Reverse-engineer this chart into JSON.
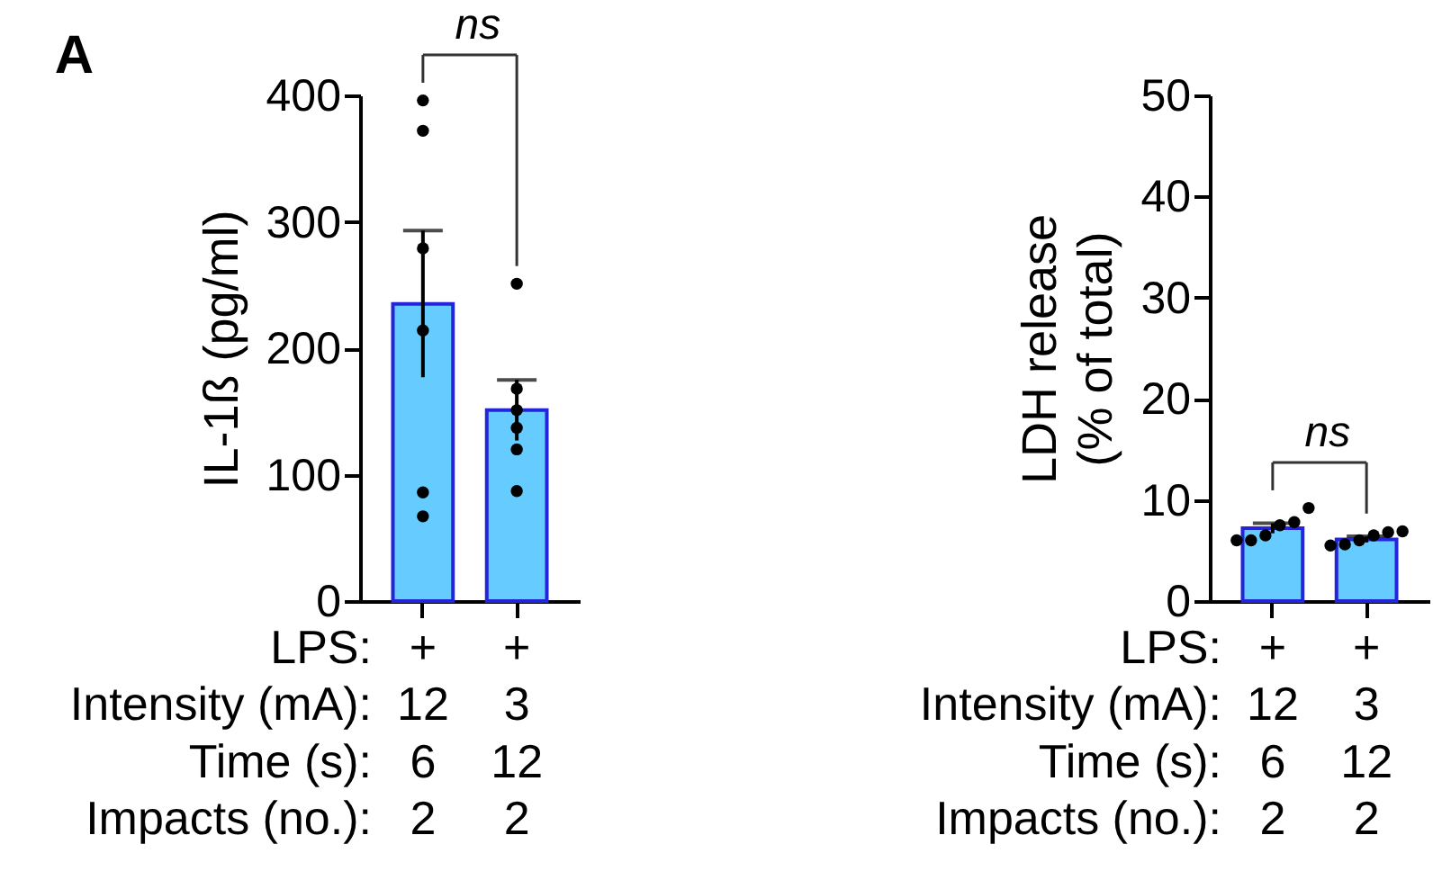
{
  "chart_data": [
    {
      "type": "bar",
      "title": "A",
      "ylabel": "IL-1ß (pg/ml)",
      "xlabel": "LPS:\nIntensity (mA):\nTime (s):\nImpacts (no.):",
      "categories": [
        "+\n12\n6\n2",
        "+\n3\n12\n2"
      ],
      "ylim": [
        0,
        400
      ],
      "yticks": [
        0,
        100,
        200,
        300,
        400
      ],
      "grid": false,
      "marker": "circle",
      "series": [
        {
          "type": "bar",
          "color": "#66ccff",
          "values": [
            235,
            151
          ],
          "errors": [
            58,
            24
          ]
        },
        {
          "type": "scatter",
          "color": "#000000",
          "x": [
            "+\n12\n6\n2",
            "+\n12\n6\n2",
            "+\n12\n6\n2",
            "+\n12\n6\n2",
            "+\n12\n6\n2",
            "+\n12\n6\n2",
            "+\n3\n12\n2",
            "+\n3\n12\n2",
            "+\n3\n12\n2",
            "+\n3\n12\n2",
            "+\n3\n12\n2",
            "+\n3\n12\n2"
          ],
          "values": [
            396,
            372,
            279,
            214,
            86,
            67,
            251,
            168,
            151,
            137,
            120,
            87
          ]
        }
      ],
      "annotations": [
        "ns"
      ]
    },
    {
      "type": "bar",
      "ylabel": "LDH release\n(% of total)",
      "xlabel": "LPS:\nIntensity (mA):\nTime (s):\nImpacts (no.):",
      "categories": [
        "+\n12\n6\n2",
        "+\n3\n12\n2"
      ],
      "ylim": [
        0,
        50
      ],
      "yticks": [
        0,
        10,
        20,
        30,
        40,
        50
      ],
      "grid": false,
      "marker": "circle",
      "series": [
        {
          "type": "bar",
          "color": "#66ccff",
          "values": [
            7.2,
            6.1
          ],
          "errors": [
            0.5,
            0.3
          ]
        },
        {
          "type": "scatter",
          "color": "#000000",
          "x": [
            "+\n12\n6\n2",
            "+\n12\n6\n2",
            "+\n12\n6\n2",
            "+\n12\n6\n2",
            "+\n12\n6\n2",
            "+\n12\n6\n2",
            "+\n3\n12\n2",
            "+\n3\n12\n2",
            "+\n3\n12\n2",
            "+\n3\n12\n2",
            "+\n3\n12\n2",
            "+\n3\n12\n2"
          ],
          "values": [
            9.2,
            7.8,
            7.5,
            6.5,
            6.0,
            6.0,
            6.9,
            6.8,
            6.5,
            6.0,
            5.6,
            5.5
          ]
        }
      ],
      "annotations": [
        "ns"
      ]
    }
  ]
}
